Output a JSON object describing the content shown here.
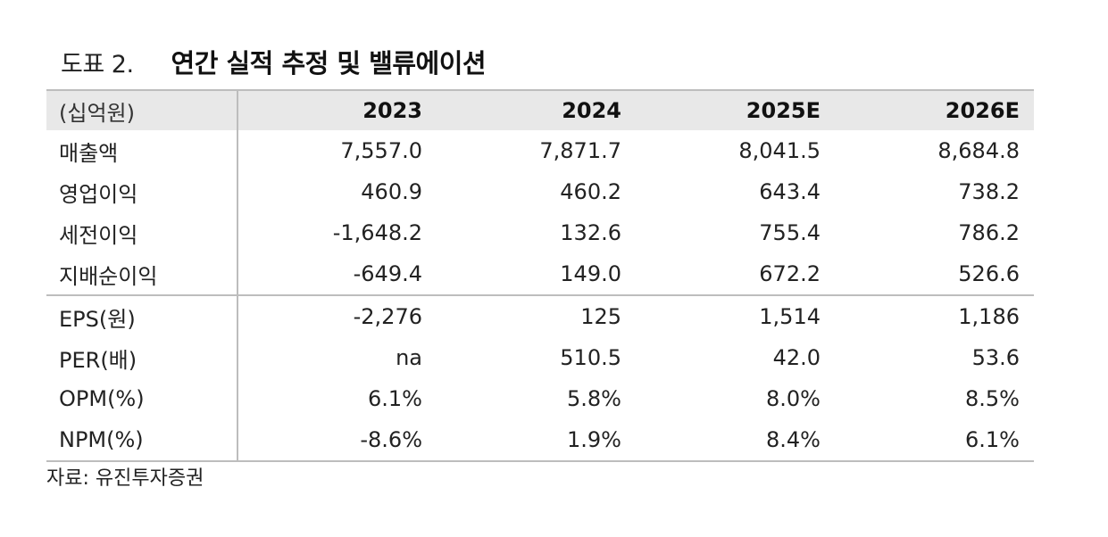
{
  "title": {
    "label": "도표 2.",
    "main": "연간 실적 추정 및 밸류에이션"
  },
  "table": {
    "unit_header": "(십억원)",
    "years": [
      "2023",
      "2024",
      "2025E",
      "2026E"
    ],
    "group1": [
      {
        "label": "매출액",
        "values": [
          "7,557.0",
          "7,871.7",
          "8,041.5",
          "8,684.8"
        ]
      },
      {
        "label": "영업이익",
        "values": [
          "460.9",
          "460.2",
          "643.4",
          "738.2"
        ]
      },
      {
        "label": "세전이익",
        "values": [
          "-1,648.2",
          "132.6",
          "755.4",
          "786.2"
        ]
      },
      {
        "label": "지배순이익",
        "values": [
          "-649.4",
          "149.0",
          "672.2",
          "526.6"
        ]
      }
    ],
    "group2": [
      {
        "label": "EPS(원)",
        "values": [
          "-2,276",
          "125",
          "1,514",
          "1,186"
        ]
      },
      {
        "label": "PER(배)",
        "values": [
          "na",
          "510.5",
          "42.0",
          "53.6"
        ]
      },
      {
        "label": "OPM(%)",
        "values": [
          "6.1%",
          "5.8%",
          "8.0%",
          "8.5%"
        ]
      },
      {
        "label": "NPM(%)",
        "values": [
          "-8.6%",
          "1.9%",
          "8.4%",
          "6.1%"
        ]
      }
    ]
  },
  "source": "자료: 유진투자증권",
  "colors": {
    "header_bg": "#e8e8e8",
    "rule": "#bdbdbd",
    "text": "#111111"
  }
}
